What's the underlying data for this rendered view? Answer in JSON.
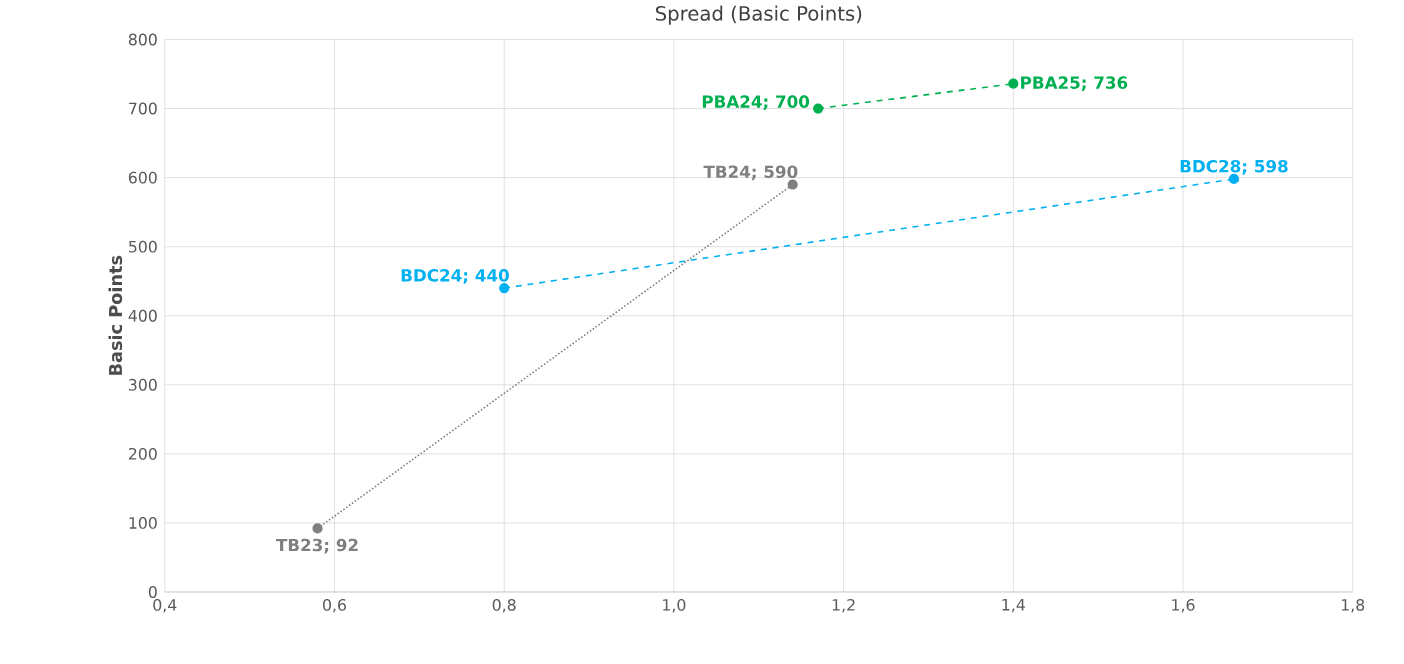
{
  "chart_data": {
    "type": "line",
    "title": "Spread (Basic Points)",
    "ylabel": "Basic Points",
    "xlim": [
      0.4,
      1.8
    ],
    "xticks": [
      {
        "value": 0.4,
        "label": "0,4"
      },
      {
        "value": 0.6,
        "label": "0,6"
      },
      {
        "value": 0.8,
        "label": "0,8"
      },
      {
        "value": 1.0,
        "label": "1,0"
      },
      {
        "value": 1.2,
        "label": "1,2"
      },
      {
        "value": 1.4,
        "label": "1,4"
      },
      {
        "value": 1.6,
        "label": "1,6"
      },
      {
        "value": 1.8,
        "label": "1,8"
      }
    ],
    "ylim": [
      0,
      800
    ],
    "yticks": [
      0,
      100,
      200,
      300,
      400,
      500,
      600,
      700,
      800
    ],
    "grid": true,
    "marker": "circle",
    "series": [
      {
        "color": "#7f7f7f",
        "line_style": "dotted",
        "x": [
          0.58,
          1.14
        ],
        "values": [
          92,
          590
        ]
      },
      {
        "color": "#00b0f0",
        "line_style": "dashed",
        "x": [
          0.8,
          1.66
        ],
        "values": [
          440,
          598
        ]
      },
      {
        "color": "#00b050",
        "line_style": "dashed",
        "x": [
          1.17,
          1.4
        ],
        "values": [
          700,
          736
        ]
      }
    ],
    "annotations": [
      {
        "text": "TB23; 92",
        "x": 0.58,
        "y": 92
      },
      {
        "text": "TB24; 590",
        "x": 1.14,
        "y": 590
      },
      {
        "text": "BDC24; 440",
        "x": 0.8,
        "y": 440
      },
      {
        "text": "BDC28; 598",
        "x": 1.66,
        "y": 598
      },
      {
        "text": "PBA24; 700",
        "x": 1.17,
        "y": 700
      },
      {
        "text": "PBA25; 736",
        "x": 1.4,
        "y": 736
      }
    ]
  }
}
